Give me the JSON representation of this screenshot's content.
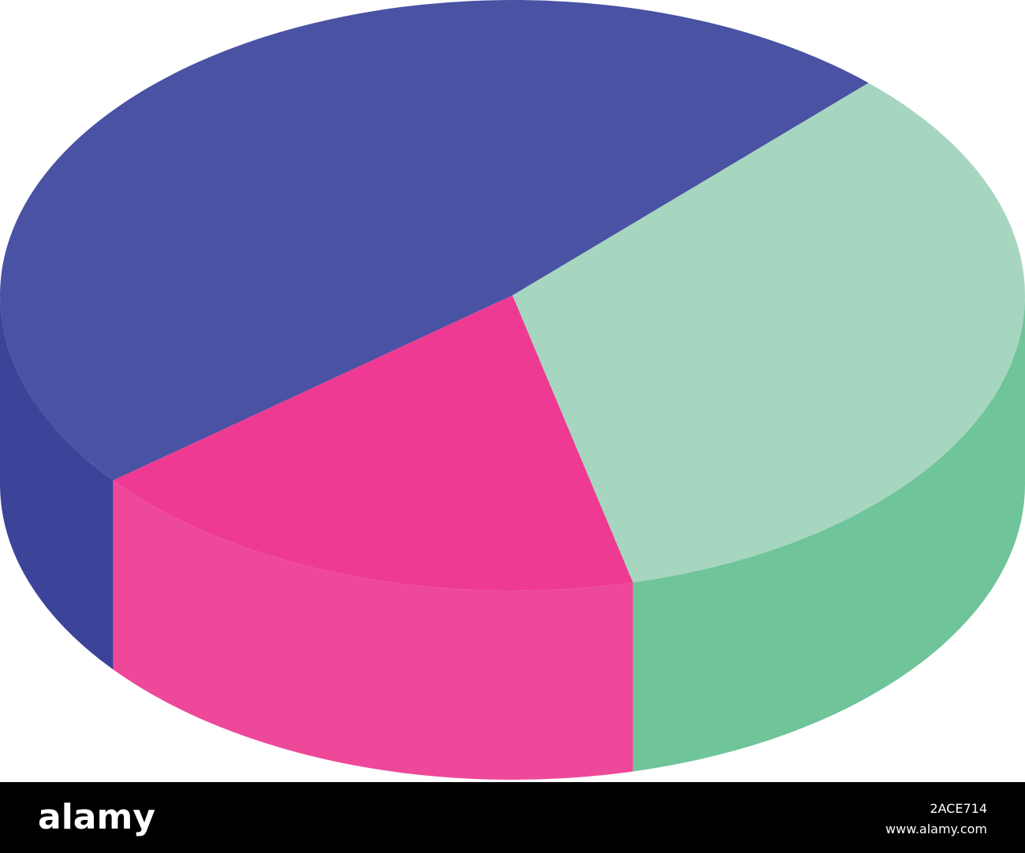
{
  "chart_data": {
    "type": "pie3d",
    "categories": [
      null,
      null,
      null
    ],
    "values": [
      48,
      18,
      34
    ],
    "colors": [
      "#4a52a3",
      "#ee3a92",
      "#a6d6bf"
    ],
    "side_colors": [
      "#3c449a",
      "#ee489b",
      "#6fc49a"
    ],
    "start_angle": 46
  },
  "footer": {
    "logo": "alamy",
    "image_id": "2ACE714",
    "url": "www.alamy.com"
  }
}
